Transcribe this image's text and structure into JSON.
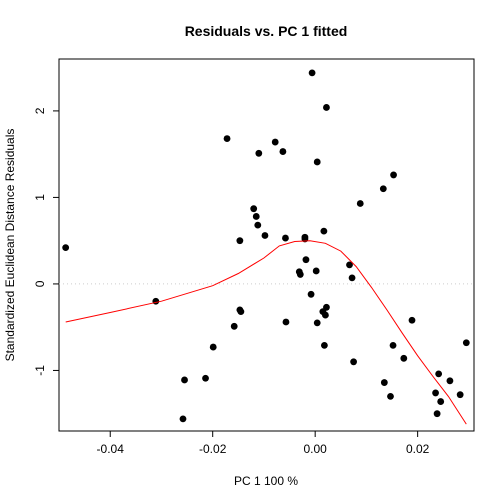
{
  "chart_data": {
    "type": "scatter",
    "title": "Residuals vs. PC 1 fitted",
    "xlabel": "PC 1 100 %",
    "ylabel": "Standardized Euclidean Distance Residuals",
    "xlim": [
      -0.05,
      0.031
    ],
    "ylim": [
      -1.7,
      2.6
    ],
    "x_ticks": [
      -0.04,
      -0.02,
      0.0,
      0.02
    ],
    "x_tick_labels": [
      "-0.04",
      "-0.02",
      "0.00",
      "0.02"
    ],
    "y_ticks": [
      -1,
      0,
      1,
      2
    ],
    "y_tick_labels": [
      "-1",
      "0",
      "1",
      "2"
    ],
    "reference_line": {
      "y": 0,
      "style": "dotted",
      "color": "#cccccc"
    },
    "points": [
      {
        "x": -0.0487,
        "y": 0.42
      },
      {
        "x": -0.0311,
        "y": -0.2
      },
      {
        "x": -0.0258,
        "y": -1.56
      },
      {
        "x": -0.0255,
        "y": -1.11
      },
      {
        "x": -0.0214,
        "y": -1.09
      },
      {
        "x": -0.0199,
        "y": -0.73
      },
      {
        "x": -0.0172,
        "y": 1.68
      },
      {
        "x": -0.0158,
        "y": -0.49
      },
      {
        "x": -0.0147,
        "y": 0.5
      },
      {
        "x": -0.0147,
        "y": -0.3
      },
      {
        "x": -0.0145,
        "y": -0.32
      },
      {
        "x": -0.012,
        "y": 0.87
      },
      {
        "x": -0.0115,
        "y": 0.78
      },
      {
        "x": -0.0112,
        "y": 0.68
      },
      {
        "x": -0.011,
        "y": 1.51
      },
      {
        "x": -0.0098,
        "y": 0.56
      },
      {
        "x": -0.0078,
        "y": 1.64
      },
      {
        "x": -0.0063,
        "y": 1.53
      },
      {
        "x": -0.0058,
        "y": 0.53
      },
      {
        "x": -0.0057,
        "y": -0.44
      },
      {
        "x": -0.0031,
        "y": 0.14
      },
      {
        "x": -0.0029,
        "y": 0.11
      },
      {
        "x": -0.002,
        "y": 0.52
      },
      {
        "x": -0.002,
        "y": 0.54
      },
      {
        "x": -0.0018,
        "y": 0.28
      },
      {
        "x": -0.0008,
        "y": -0.12
      },
      {
        "x": -0.0006,
        "y": 2.44
      },
      {
        "x": 0.0002,
        "y": 0.15
      },
      {
        "x": 0.0004,
        "y": 1.41
      },
      {
        "x": 0.0004,
        "y": -0.45
      },
      {
        "x": 0.0015,
        "y": -0.32
      },
      {
        "x": 0.0017,
        "y": 0.61
      },
      {
        "x": 0.0018,
        "y": -0.71
      },
      {
        "x": 0.002,
        "y": -0.36
      },
      {
        "x": 0.0022,
        "y": -0.27
      },
      {
        "x": 0.0022,
        "y": 2.04
      },
      {
        "x": 0.0067,
        "y": 0.22
      },
      {
        "x": 0.0072,
        "y": 0.07
      },
      {
        "x": 0.0075,
        "y": -0.9
      },
      {
        "x": 0.0088,
        "y": 0.93
      },
      {
        "x": 0.0133,
        "y": 1.1
      },
      {
        "x": 0.0135,
        "y": -1.14
      },
      {
        "x": 0.0147,
        "y": -1.3
      },
      {
        "x": 0.0153,
        "y": 1.26
      },
      {
        "x": 0.0152,
        "y": -0.71
      },
      {
        "x": 0.0173,
        "y": -0.86
      },
      {
        "x": 0.0189,
        "y": -0.42
      },
      {
        "x": 0.0235,
        "y": -1.26
      },
      {
        "x": 0.0238,
        "y": -1.5
      },
      {
        "x": 0.0241,
        "y": -1.04
      },
      {
        "x": 0.0245,
        "y": -1.36
      },
      {
        "x": 0.0263,
        "y": -1.12
      },
      {
        "x": 0.0283,
        "y": -1.28
      },
      {
        "x": 0.0295,
        "y": -0.68
      }
    ],
    "smooth_line": {
      "color": "#ff0000",
      "points": [
        {
          "x": -0.0487,
          "y": -0.44
        },
        {
          "x": -0.04,
          "y": -0.33
        },
        {
          "x": -0.03,
          "y": -0.2
        },
        {
          "x": -0.02,
          "y": -0.02
        },
        {
          "x": -0.015,
          "y": 0.12
        },
        {
          "x": -0.01,
          "y": 0.3
        },
        {
          "x": -0.007,
          "y": 0.44
        },
        {
          "x": -0.004,
          "y": 0.49
        },
        {
          "x": -0.001,
          "y": 0.5
        },
        {
          "x": 0.002,
          "y": 0.47
        },
        {
          "x": 0.005,
          "y": 0.38
        },
        {
          "x": 0.008,
          "y": 0.2
        },
        {
          "x": 0.011,
          "y": -0.04
        },
        {
          "x": 0.014,
          "y": -0.3
        },
        {
          "x": 0.017,
          "y": -0.57
        },
        {
          "x": 0.02,
          "y": -0.83
        },
        {
          "x": 0.023,
          "y": -1.07
        },
        {
          "x": 0.026,
          "y": -1.3
        },
        {
          "x": 0.0295,
          "y": -1.62
        }
      ]
    }
  }
}
